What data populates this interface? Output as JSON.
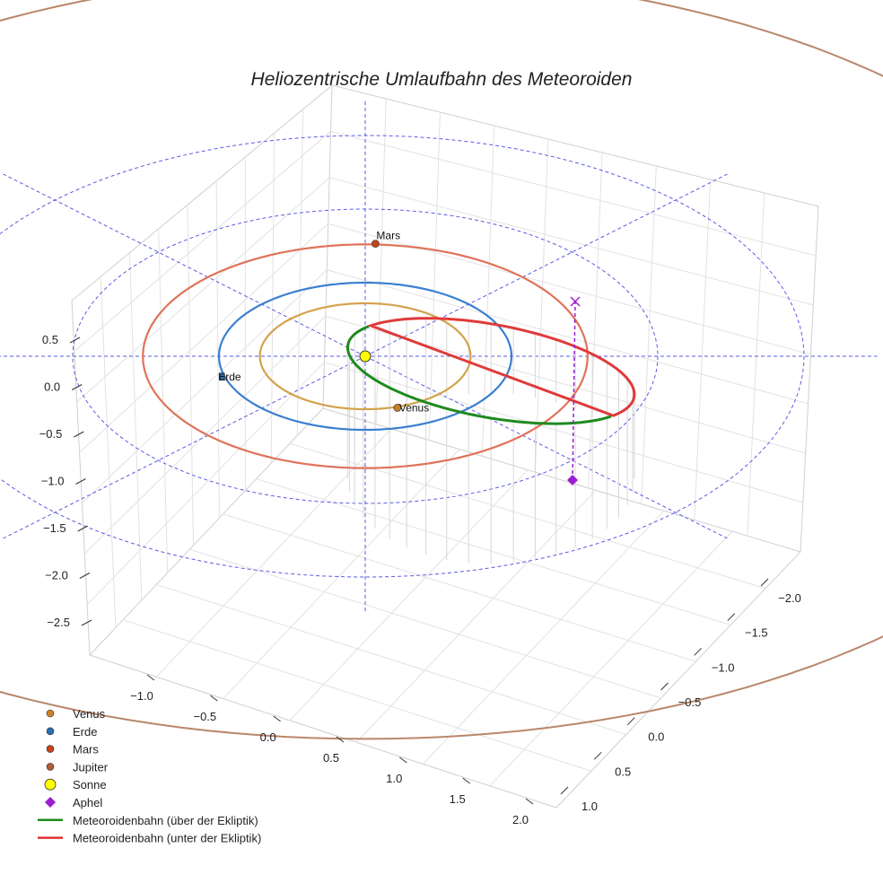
{
  "chart_data": {
    "type": "line3d",
    "title": "Heliozentrische Umlaufbahn des Meteoroiden",
    "axes": {
      "z_ticks": [
        "0.5",
        "0.0",
        "−0.5",
        "−1.0",
        "−1.5",
        "−2.0",
        "−2.5"
      ],
      "x_ticks": [
        "−1.0",
        "−0.5",
        "0.0",
        "0.5",
        "1.0",
        "1.5",
        "2.0"
      ],
      "y_ticks": [
        "−2.0",
        "−1.5",
        "−1.0",
        "−0.5",
        "0.0",
        "0.5",
        "1.0"
      ],
      "xlim": [
        -1.2,
        2.2
      ],
      "ylim": [
        -2.3,
        1.2
      ],
      "zlim": [
        -2.7,
        0.8
      ]
    },
    "planets": [
      {
        "name": "Venus",
        "label": "Venus",
        "a": 0.72,
        "color": "#d4a24c",
        "marker_color": "#c8822a"
      },
      {
        "name": "Erde",
        "label": "Erde",
        "a": 1.0,
        "color": "#3a7fd0",
        "marker_color": "#2a6fb0"
      },
      {
        "name": "Mars",
        "label": "Mars",
        "a": 1.52,
        "color": "#e0735a",
        "marker_color": "#c8441a"
      },
      {
        "name": "Jupiter",
        "label": "",
        "a": 5.2,
        "color": "#b9876a",
        "marker_color": "#b05a3a"
      }
    ],
    "sun": {
      "name": "Sonne",
      "color": "#ffff00"
    },
    "aphel": {
      "name": "Aphel",
      "color": "#9b1fd0"
    },
    "meteoroid": {
      "a": 1.55,
      "e": 0.62,
      "inclination_deg": 12
    },
    "reference_circles_au": [
      1,
      2,
      3
    ],
    "legend": [
      {
        "label": "Venus",
        "kind": "dot",
        "color": "#c8822a"
      },
      {
        "label": "Erde",
        "kind": "dot",
        "color": "#2a6fb0"
      },
      {
        "label": "Mars",
        "kind": "dot",
        "color": "#c8441a"
      },
      {
        "label": "Jupiter",
        "kind": "dot",
        "color": "#b05a3a"
      },
      {
        "label": "Sonne",
        "kind": "sun",
        "color": "#ffff00"
      },
      {
        "label": "Aphel",
        "kind": "diamond",
        "color": "#9b1fd0"
      },
      {
        "label": "Meteoroidenbahn (über der Ekliptik)",
        "kind": "line",
        "color": "#1f8a1f"
      },
      {
        "label": "Meteoroidenbahn (unter der Ekliptik)",
        "kind": "line",
        "color": "#e03030"
      }
    ]
  }
}
